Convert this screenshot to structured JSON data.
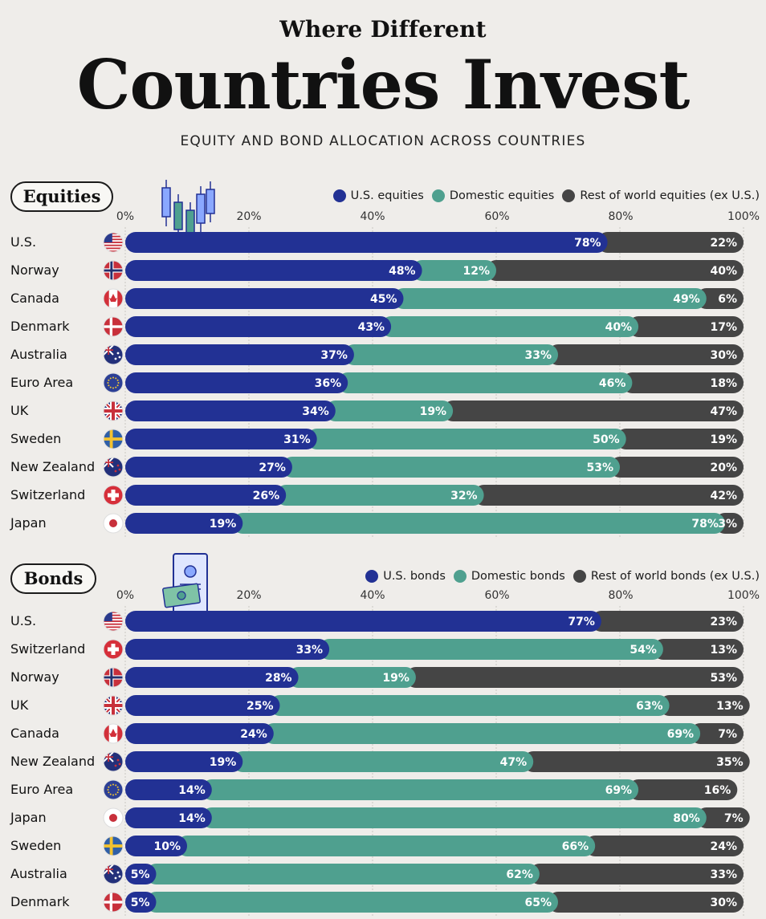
{
  "title_sup": "Where Different",
  "title_main": "Countries Invest",
  "subtitle": "EQUITY AND BOND ALLOCATION ACROSS COUNTRIES",
  "colors": {
    "us": "#223194",
    "domestic": "#4fa08f",
    "rest": "#454545"
  },
  "axis_ticks": [
    "0%",
    "20%",
    "40%",
    "60%",
    "80%",
    "100%"
  ],
  "chart_data": [
    {
      "type": "bar",
      "stacked": true,
      "orientation": "horizontal",
      "title": "Equities",
      "legend": [
        "U.S. equities",
        "Domestic equities",
        "Rest of world equities (ex U.S.)"
      ],
      "xlim": [
        0,
        100
      ],
      "categories": [
        "U.S.",
        "Norway",
        "Canada",
        "Denmark",
        "Australia",
        "Euro Area",
        "UK",
        "Sweden",
        "New Zealand",
        "Switzerland",
        "Japan"
      ],
      "flags": [
        "us",
        "norway",
        "canada",
        "denmark",
        "australia",
        "eu",
        "uk",
        "sweden",
        "nz",
        "switzerland",
        "japan"
      ],
      "series": [
        {
          "name": "U.S. equities",
          "values": [
            78,
            48,
            45,
            43,
            37,
            36,
            34,
            31,
            27,
            26,
            19
          ]
        },
        {
          "name": "Domestic equities",
          "values": [
            0,
            12,
            49,
            40,
            33,
            46,
            19,
            50,
            53,
            32,
            78
          ]
        },
        {
          "name": "Rest of world equities (ex U.S.)",
          "values": [
            22,
            40,
            6,
            17,
            30,
            18,
            47,
            19,
            20,
            42,
            3
          ]
        }
      ]
    },
    {
      "type": "bar",
      "stacked": true,
      "orientation": "horizontal",
      "title": "Bonds",
      "legend": [
        "U.S. bonds",
        "Domestic bonds",
        "Rest of world bonds (ex U.S.)"
      ],
      "xlim": [
        0,
        100
      ],
      "categories": [
        "U.S.",
        "Switzerland",
        "Norway",
        "UK",
        "Canada",
        "New Zealand",
        "Euro Area",
        "Japan",
        "Sweden",
        "Australia",
        "Denmark"
      ],
      "flags": [
        "us",
        "switzerland",
        "norway",
        "uk",
        "canada",
        "nz",
        "eu",
        "japan",
        "sweden",
        "australia",
        "denmark"
      ],
      "series": [
        {
          "name": "U.S. bonds",
          "values": [
            77,
            33,
            28,
            25,
            24,
            19,
            14,
            14,
            10,
            5,
            5
          ]
        },
        {
          "name": "Domestic bonds",
          "values": [
            0,
            54,
            19,
            63,
            69,
            47,
            69,
            80,
            66,
            62,
            65
          ]
        },
        {
          "name": "Rest of world bonds (ex U.S.)",
          "values": [
            23,
            13,
            53,
            13,
            7,
            35,
            16,
            7,
            24,
            33,
            30
          ]
        }
      ]
    }
  ]
}
